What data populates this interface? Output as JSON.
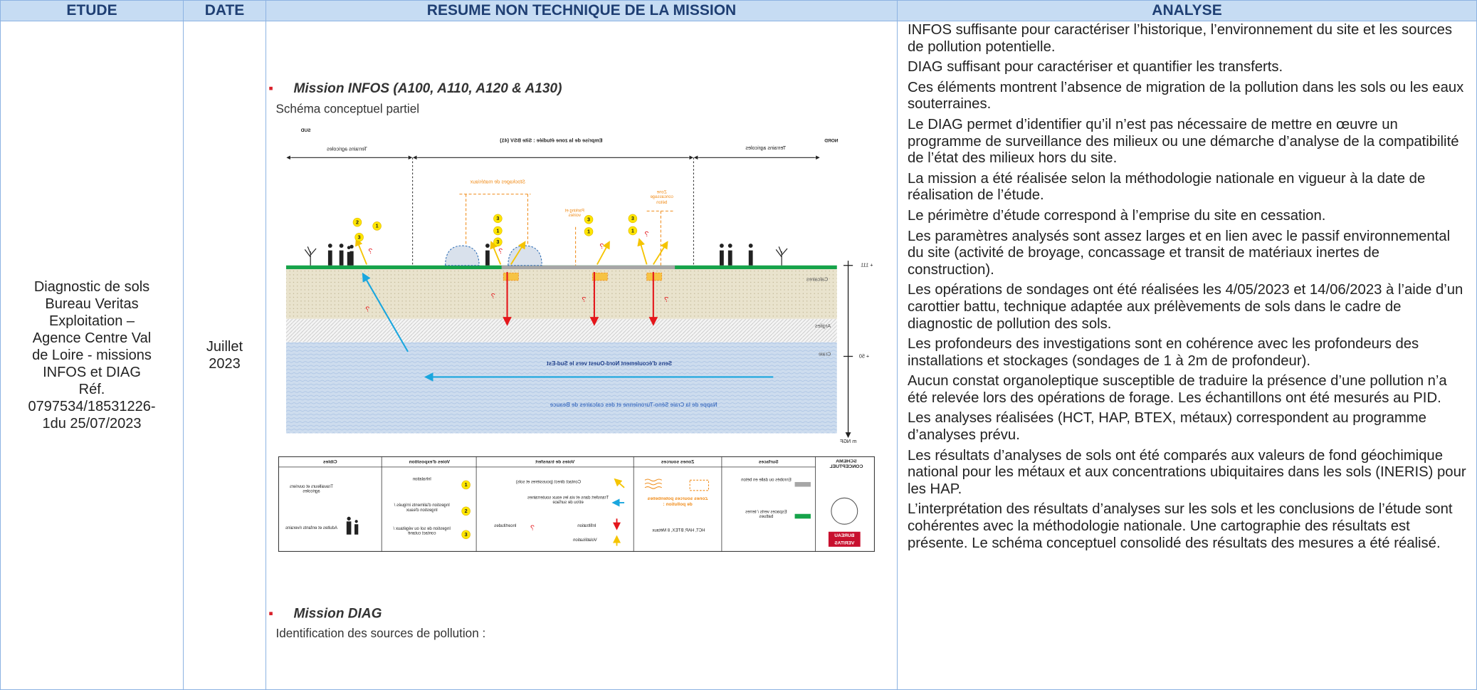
{
  "header": {
    "columns": [
      "ETUDE",
      "DATE",
      "RESUME NON TECHNIQUE DE LA MISSION",
      "ANALYSE"
    ]
  },
  "row": {
    "etude": [
      "Diagnostic de sols",
      "Bureau Veritas",
      "Exploitation –",
      "Agence Centre Val",
      "de Loire - missions",
      "INFOS et DIAG",
      "Réf.",
      "0797534/18531226-",
      "1du 25/07/2023"
    ],
    "date": [
      "Juillet",
      "2023"
    ],
    "resume": {
      "mission_infos": {
        "title": "Mission INFOS (A100, A110, A120 & A130)",
        "subtitle": "Schéma conceptuel partiel"
      },
      "diagram": {
        "south": "SUD",
        "north": "NORD",
        "site_extent": "Emprise de la zone étudiée : Site BSV (41)",
        "farmland": "Terrains agricoles",
        "zones": [
          "Stockages de matériaux",
          "Parking et voiries",
          "Zone concassage béton"
        ],
        "layers": [
          "Calcaires",
          "Argiles",
          "Craie"
        ],
        "flow": "Sens d'écoulement Nord-Ouest vers le Sud-Est",
        "aquifer": "Nappe de la Craie Séno-Turonienne et des calcaires de Beauce",
        "elevations": [
          "+ 111",
          "+ 50"
        ],
        "elevation_unit": "m NGF",
        "uncertainty": "?",
        "legend": {
          "title": "SCHÉMA CONCEPTUEL",
          "columns": [
            "Surfaces",
            "Zones sources",
            "Voies de transfert",
            "Voies d'exposition",
            "Cibles"
          ],
          "surfaces": [
            "Enrobés ou dalle en béton",
            "Espaces verts / terres battues"
          ],
          "sources": {
            "label": "Zones sources potentielles de pollution :",
            "substances": "HCT, HAP, BTEX, 8 Métaux"
          },
          "transfers": [
            "Contact direct (poussières et sols)",
            "Transfert dans et via les eaux souterraines et/ou de surface",
            "Infiltration",
            "Volatilisation"
          ],
          "uncertainty": "Incertitudes",
          "exposure": [
            {
              "number": "1",
              "label": "Inhalation"
            },
            {
              "number": "2",
              "label": "Ingestion d'aliments irrigués / Ingestion d'eaux"
            },
            {
              "number": "3",
              "label": "Ingestion de sol ou végétaux / contact cutané"
            }
          ],
          "targets": [
            "Travailleurs et ouvriers agricoles",
            "Adultes et enfants riverains"
          ],
          "logo": [
            "BUREAU",
            "VERITAS"
          ]
        }
      },
      "mission_diag": {
        "title": "Mission DIAG",
        "subtitle": "Identification des sources de pollution :"
      }
    },
    "analyse": [
      "INFOS suffisante pour caractériser l’historique, l’environnement du site et les sources de pollution potentielle.",
      "DIAG suffisant pour caractériser et quantifier les transferts.",
      "Ces éléments montrent l’absence de migration de la pollution dans les sols ou les eaux souterraines.",
      "Le DIAG permet d’identifier qu’il n’est pas nécessaire de mettre en œuvre un programme de surveillance des milieux ou une démarche d’analyse de la compatibilité de l’état des milieux hors du site.",
      "La mission a été réalisée selon la méthodologie nationale en vigueur à la date de réalisation de l’étude.",
      "Le périmètre d’étude correspond à l’emprise du site en cessation.",
      "Les paramètres analysés sont assez larges et en lien avec le passif environnemental du site (activité de broyage, concassage et transit de matériaux inertes de construction).",
      "Les opérations de sondages ont été réalisées les 4/05/2023 et 14/06/2023 à l’aide d’un carottier battu, technique adaptée aux prélèvements de sols dans le cadre de diagnostic de pollution des sols.",
      "Les profondeurs des investigations sont en cohérence avec les profondeurs des installations et stockages (sondages de 1 à 2m de profondeur).",
      "Aucun constat organoleptique susceptible de traduire la présence d’une pollution n’a été relevée lors des opérations de forage. Les échantillons ont été mesurés au PID.",
      "Les analyses réalisées (HCT, HAP, BTEX, métaux) correspondent au programme d’analyses prévu.",
      "Les résultats d’analyses de sols ont été comparés aux valeurs de fond géochimique national pour les métaux et aux concentrations ubiquitaires dans les sols (INERIS) pour les HAP.",
      "L’interprétation des résultats d’analyses sur les sols et les conclusions de l’étude sont cohérentes avec la méthodologie nationale. Une cartographie des résultats est présente. Le schéma conceptuel consolidé des résultats des mesures a été réalisé."
    ]
  }
}
